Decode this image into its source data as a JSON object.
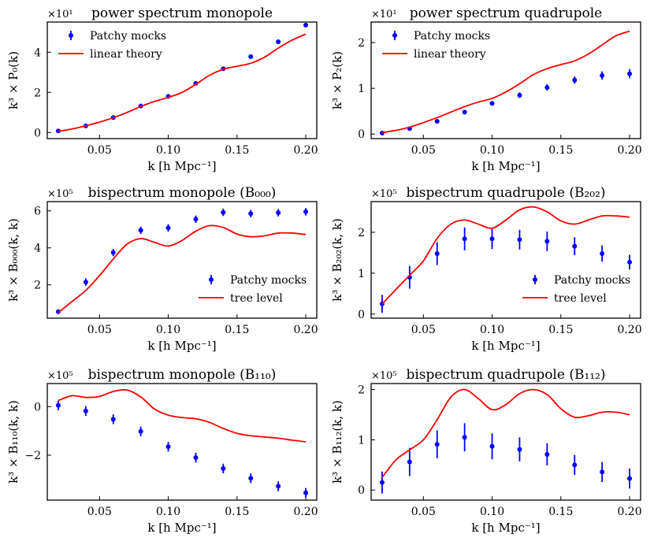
{
  "chart_data": [
    {
      "type": "scatter",
      "title": "power spectrum monopole",
      "xlabel": "k [h Mpc⁻¹]",
      "ylabel": "k³ × P₀(k)",
      "multiplier": "×10¹",
      "xlim": [
        0.012,
        0.208
      ],
      "ylim": [
        -0.3,
        5.5
      ],
      "xticks": [
        0.05,
        0.1,
        0.15,
        0.2
      ],
      "xtick_labels": [
        "0.05",
        "0.10",
        "0.15",
        "0.20"
      ],
      "yticks": [
        0,
        2,
        4
      ],
      "ytick_labels": [
        "0",
        "2",
        "4"
      ],
      "legend": {
        "position": "top-left",
        "items": [
          "Patchy mocks",
          "linear theory"
        ]
      },
      "series": [
        {
          "name": "Patchy mocks",
          "kind": "points",
          "x": [
            0.02,
            0.04,
            0.06,
            0.08,
            0.1,
            0.12,
            0.14,
            0.16,
            0.18,
            0.2
          ],
          "y": [
            0.08,
            0.33,
            0.75,
            1.32,
            1.8,
            2.45,
            3.18,
            3.78,
            4.52,
            5.35
          ],
          "err": [
            0.03,
            0.04,
            0.05,
            0.05,
            0.05,
            0.06,
            0.06,
            0.07,
            0.07,
            0.08
          ]
        },
        {
          "name": "linear theory",
          "kind": "line",
          "x": [
            0.02,
            0.03,
            0.04,
            0.05,
            0.06,
            0.07,
            0.08,
            0.09,
            0.1,
            0.11,
            0.12,
            0.13,
            0.14,
            0.15,
            0.16,
            0.17,
            0.18,
            0.19,
            0.2
          ],
          "y": [
            0.06,
            0.18,
            0.34,
            0.52,
            0.74,
            1.0,
            1.3,
            1.55,
            1.75,
            2.0,
            2.4,
            2.85,
            3.15,
            3.3,
            3.45,
            3.75,
            4.2,
            4.6,
            4.9
          ]
        }
      ]
    },
    {
      "type": "scatter",
      "title": "power spectrum quadrupole",
      "xlabel": "k [h Mpc⁻¹]",
      "ylabel": "k³ × P₂(k)",
      "multiplier": "×10¹",
      "xlim": [
        0.012,
        0.208
      ],
      "ylim": [
        -0.1,
        2.45
      ],
      "xticks": [
        0.05,
        0.1,
        0.15,
        0.2
      ],
      "xtick_labels": [
        "0.05",
        "0.10",
        "0.15",
        "0.20"
      ],
      "yticks": [
        0,
        1,
        2
      ],
      "ytick_labels": [
        "0",
        "1",
        "2"
      ],
      "legend": {
        "position": "top-left",
        "items": [
          "Patchy mocks",
          "linear theory"
        ]
      },
      "series": [
        {
          "name": "Patchy mocks",
          "kind": "points",
          "x": [
            0.02,
            0.04,
            0.06,
            0.08,
            0.1,
            0.12,
            0.14,
            0.16,
            0.18,
            0.2
          ],
          "y": [
            0.02,
            0.12,
            0.28,
            0.48,
            0.67,
            0.85,
            1.02,
            1.18,
            1.28,
            1.32
          ],
          "err": [
            0.02,
            0.03,
            0.04,
            0.04,
            0.05,
            0.06,
            0.07,
            0.08,
            0.09,
            0.1
          ]
        },
        {
          "name": "linear theory",
          "kind": "line",
          "x": [
            0.02,
            0.03,
            0.04,
            0.05,
            0.06,
            0.07,
            0.08,
            0.09,
            0.1,
            0.11,
            0.12,
            0.13,
            0.14,
            0.15,
            0.16,
            0.17,
            0.18,
            0.19,
            0.2
          ],
          "y": [
            0.03,
            0.08,
            0.15,
            0.25,
            0.36,
            0.48,
            0.6,
            0.7,
            0.78,
            0.92,
            1.1,
            1.3,
            1.43,
            1.52,
            1.6,
            1.75,
            1.95,
            2.15,
            2.25
          ]
        }
      ]
    },
    {
      "type": "scatter",
      "title": "bispectrum monopole (B₀₀₀)",
      "xlabel": "k [h Mpc⁻¹]",
      "ylabel": "k³ × B₀₀₀(k, k)",
      "multiplier": "×10⁵",
      "xlim": [
        0.012,
        0.208
      ],
      "ylim": [
        0.2,
        6.5
      ],
      "xticks": [
        0.05,
        0.1,
        0.15,
        0.2
      ],
      "xtick_labels": [
        "0.05",
        "0.10",
        "0.15",
        "0.20"
      ],
      "yticks": [
        2,
        4,
        6
      ],
      "ytick_labels": [
        "2",
        "4",
        "6"
      ],
      "legend": {
        "position": "bottom-right",
        "items": [
          "Patchy mocks",
          "tree level"
        ]
      },
      "series": [
        {
          "name": "Patchy mocks",
          "kind": "points",
          "x": [
            0.02,
            0.04,
            0.06,
            0.08,
            0.1,
            0.12,
            0.14,
            0.16,
            0.18,
            0.2
          ],
          "y": [
            0.55,
            2.15,
            3.75,
            4.95,
            5.08,
            5.55,
            5.92,
            5.85,
            5.9,
            5.95
          ],
          "err": [
            0.1,
            0.2,
            0.2,
            0.2,
            0.2,
            0.2,
            0.2,
            0.2,
            0.2,
            0.2
          ]
        },
        {
          "name": "tree level",
          "kind": "line",
          "x": [
            0.02,
            0.03,
            0.04,
            0.05,
            0.06,
            0.07,
            0.08,
            0.09,
            0.1,
            0.11,
            0.12,
            0.13,
            0.14,
            0.15,
            0.16,
            0.17,
            0.18,
            0.19,
            0.2
          ],
          "y": [
            0.5,
            1.1,
            1.7,
            2.5,
            3.4,
            4.2,
            4.5,
            4.3,
            4.1,
            4.4,
            4.9,
            5.2,
            5.1,
            4.75,
            4.6,
            4.65,
            4.8,
            4.8,
            4.72
          ]
        }
      ]
    },
    {
      "type": "scatter",
      "title": "bispectrum quadrupole (B₂₀₂)",
      "xlabel": "k [h Mpc⁻¹]",
      "ylabel": "k³ × B₂₀₂(k, k)",
      "multiplier": "×10⁵",
      "xlim": [
        0.012,
        0.208
      ],
      "ylim": [
        -0.1,
        2.75
      ],
      "xticks": [
        0.05,
        0.1,
        0.15,
        0.2
      ],
      "xtick_labels": [
        "0.05",
        "0.10",
        "0.15",
        "0.20"
      ],
      "yticks": [
        0,
        1,
        2
      ],
      "ytick_labels": [
        "0",
        "1",
        "2"
      ],
      "legend": {
        "position": "bottom-right",
        "items": [
          "Patchy mocks",
          "tree level"
        ]
      },
      "series": [
        {
          "name": "Patchy mocks",
          "kind": "points",
          "x": [
            0.02,
            0.04,
            0.06,
            0.08,
            0.1,
            0.12,
            0.14,
            0.16,
            0.18,
            0.2
          ],
          "y": [
            0.25,
            0.9,
            1.48,
            1.84,
            1.84,
            1.82,
            1.78,
            1.66,
            1.48,
            1.27
          ],
          "err": [
            0.22,
            0.28,
            0.28,
            0.28,
            0.25,
            0.24,
            0.24,
            0.22,
            0.2,
            0.18
          ]
        },
        {
          "name": "tree level",
          "kind": "line",
          "x": [
            0.02,
            0.03,
            0.04,
            0.05,
            0.06,
            0.07,
            0.08,
            0.09,
            0.1,
            0.11,
            0.12,
            0.13,
            0.14,
            0.15,
            0.16,
            0.17,
            0.18,
            0.19,
            0.2
          ],
          "y": [
            0.25,
            0.6,
            0.95,
            1.3,
            1.85,
            2.2,
            2.3,
            2.2,
            2.1,
            2.3,
            2.55,
            2.62,
            2.5,
            2.28,
            2.2,
            2.3,
            2.4,
            2.4,
            2.37
          ]
        }
      ]
    },
    {
      "type": "scatter",
      "title": "bispectrum monopole (B₁₁₀)",
      "xlabel": "k [h Mpc⁻¹]",
      "ylabel": "k³ × B₁₁₀(k, k)",
      "multiplier": "×10⁵",
      "xlim": [
        0.012,
        0.208
      ],
      "ylim": [
        -3.85,
        0.95
      ],
      "xticks": [
        0.05,
        0.1,
        0.15,
        0.2
      ],
      "xtick_labels": [
        "0.05",
        "0.10",
        "0.15",
        "0.20"
      ],
      "yticks": [
        -2,
        0
      ],
      "ytick_labels": [
        "−2",
        "0"
      ],
      "legend": null,
      "series": [
        {
          "name": "Patchy mocks",
          "kind": "points",
          "x": [
            0.02,
            0.04,
            0.06,
            0.08,
            0.1,
            0.12,
            0.14,
            0.16,
            0.18,
            0.2
          ],
          "y": [
            0.05,
            -0.18,
            -0.52,
            -1.02,
            -1.65,
            -2.1,
            -2.55,
            -2.95,
            -3.28,
            -3.55
          ],
          "err": [
            0.2,
            0.2,
            0.2,
            0.2,
            0.2,
            0.2,
            0.2,
            0.2,
            0.2,
            0.2
          ]
        },
        {
          "name": "tree level",
          "kind": "line",
          "x": [
            0.02,
            0.03,
            0.04,
            0.05,
            0.06,
            0.07,
            0.08,
            0.09,
            0.1,
            0.11,
            0.12,
            0.13,
            0.14,
            0.15,
            0.16,
            0.17,
            0.18,
            0.19,
            0.2
          ],
          "y": [
            0.25,
            0.45,
            0.38,
            0.42,
            0.62,
            0.68,
            0.4,
            -0.1,
            -0.35,
            -0.45,
            -0.5,
            -0.65,
            -0.9,
            -1.1,
            -1.2,
            -1.25,
            -1.3,
            -1.38,
            -1.45
          ]
        }
      ]
    },
    {
      "type": "scatter",
      "title": "bispectrum quadrupole (B₁₁₂)",
      "xlabel": "k [h Mpc⁻¹]",
      "ylabel": "k³ × B₁₁₂(k, k)",
      "multiplier": "×10⁵",
      "xlim": [
        0.012,
        0.208
      ],
      "ylim": [
        -0.2,
        2.12
      ],
      "xticks": [
        0.05,
        0.1,
        0.15,
        0.2
      ],
      "xtick_labels": [
        "0.05",
        "0.10",
        "0.15",
        "0.20"
      ],
      "yticks": [
        0,
        1,
        2
      ],
      "ytick_labels": [
        "0",
        "1",
        "2"
      ],
      "legend": null,
      "series": [
        {
          "name": "Patchy mocks",
          "kind": "points",
          "x": [
            0.02,
            0.04,
            0.06,
            0.08,
            0.1,
            0.12,
            0.14,
            0.16,
            0.18,
            0.2
          ],
          "y": [
            0.15,
            0.56,
            0.91,
            1.05,
            0.87,
            0.81,
            0.71,
            0.5,
            0.36,
            0.23
          ],
          "err": [
            0.22,
            0.28,
            0.28,
            0.28,
            0.26,
            0.24,
            0.22,
            0.2,
            0.2,
            0.2
          ]
        },
        {
          "name": "tree level",
          "kind": "line",
          "x": [
            0.02,
            0.03,
            0.04,
            0.05,
            0.06,
            0.07,
            0.08,
            0.09,
            0.1,
            0.11,
            0.12,
            0.13,
            0.14,
            0.15,
            0.16,
            0.17,
            0.18,
            0.19,
            0.2
          ],
          "y": [
            0.25,
            0.6,
            0.8,
            1.0,
            1.4,
            1.85,
            2.0,
            1.82,
            1.6,
            1.7,
            1.92,
            2.0,
            1.9,
            1.62,
            1.45,
            1.48,
            1.55,
            1.55,
            1.5
          ]
        }
      ]
    }
  ]
}
